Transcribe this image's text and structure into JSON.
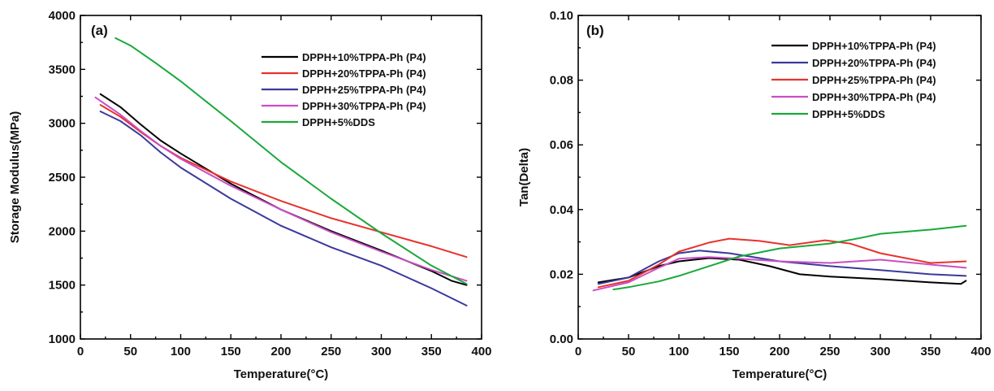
{
  "chart_data": [
    {
      "type": "line",
      "panel_label": "(a)",
      "xlabel": "Temperature",
      "xlabel_unit": "(°C)",
      "ylabel": "Storage Modulus(MPa)",
      "xlim": [
        0,
        400
      ],
      "ylim": [
        1000,
        4000
      ],
      "x_ticks": [
        0,
        50,
        100,
        150,
        200,
        250,
        300,
        350,
        400
      ],
      "y_ticks": [
        1000,
        1500,
        2000,
        2500,
        3000,
        3500,
        4000
      ],
      "grid": false,
      "legend_position": "top-right",
      "series": [
        {
          "name": "DPPH+10%TPPA-Ph (P4)",
          "color": "#000000",
          "x": [
            20,
            40,
            60,
            80,
            100,
            150,
            200,
            250,
            300,
            350,
            370,
            385
          ],
          "y": [
            3270,
            3150,
            2990,
            2840,
            2720,
            2440,
            2200,
            2000,
            1820,
            1630,
            1540,
            1500
          ]
        },
        {
          "name": "DPPH+20%TPPA-Ph (P4)",
          "color": "#e8322c",
          "x": [
            20,
            40,
            60,
            80,
            100,
            150,
            200,
            250,
            300,
            350,
            385
          ],
          "y": [
            3170,
            3060,
            2920,
            2790,
            2680,
            2460,
            2280,
            2120,
            1990,
            1860,
            1760
          ]
        },
        {
          "name": "DPPH+25%TPPA-Ph (P4)",
          "color": "#3a3a9c",
          "x": [
            20,
            40,
            60,
            80,
            100,
            150,
            200,
            250,
            300,
            350,
            385
          ],
          "y": [
            3110,
            3020,
            2890,
            2730,
            2590,
            2300,
            2050,
            1850,
            1680,
            1470,
            1310
          ]
        },
        {
          "name": "DPPH+30%TPPA-Ph (P4)",
          "color": "#c94fc4",
          "x": [
            15,
            40,
            60,
            80,
            100,
            150,
            200,
            250,
            300,
            350,
            385
          ],
          "y": [
            3240,
            3080,
            2930,
            2790,
            2670,
            2420,
            2200,
            1990,
            1810,
            1640,
            1540
          ]
        },
        {
          "name": "DPPH+5%DDS",
          "color": "#19a83a",
          "x": [
            35,
            50,
            75,
            100,
            150,
            200,
            250,
            300,
            350,
            385
          ],
          "y": [
            3790,
            3720,
            3560,
            3390,
            3020,
            2640,
            2300,
            1980,
            1680,
            1510
          ]
        }
      ]
    },
    {
      "type": "line",
      "panel_label": "(b)",
      "xlabel": "Temperature",
      "xlabel_unit": "(°C)",
      "ylabel": "Tan(Delta)",
      "xlim": [
        0,
        400
      ],
      "ylim": [
        0.0,
        0.1
      ],
      "x_ticks": [
        0,
        50,
        100,
        150,
        200,
        250,
        300,
        350,
        400
      ],
      "y_ticks": [
        "0.00",
        "0.02",
        "0.04",
        "0.06",
        "0.08",
        "0.10"
      ],
      "grid": false,
      "legend_position": "top-right",
      "series": [
        {
          "name": "DPPH+10%TPPA-Ph (P4)",
          "color": "#000000",
          "x": [
            20,
            50,
            80,
            100,
            130,
            160,
            190,
            220,
            250,
            300,
            350,
            380,
            385
          ],
          "y": [
            0.0175,
            0.019,
            0.0225,
            0.024,
            0.025,
            0.0245,
            0.0225,
            0.02,
            0.0193,
            0.0185,
            0.0175,
            0.017,
            0.018
          ]
        },
        {
          "name": "DPPH+20%TPPA-Ph (P4)",
          "color": "#3a3a9c",
          "x": [
            20,
            50,
            80,
            100,
            120,
            150,
            180,
            200,
            250,
            300,
            350,
            385
          ],
          "y": [
            0.017,
            0.019,
            0.024,
            0.0265,
            0.0273,
            0.0265,
            0.025,
            0.024,
            0.0225,
            0.0213,
            0.02,
            0.0195
          ]
        },
        {
          "name": "DPPH+25%TPPA-Ph (P4)",
          "color": "#e8322c",
          "x": [
            20,
            50,
            80,
            100,
            130,
            150,
            180,
            210,
            245,
            270,
            300,
            350,
            385
          ],
          "y": [
            0.016,
            0.018,
            0.023,
            0.027,
            0.0298,
            0.031,
            0.0303,
            0.029,
            0.0305,
            0.0295,
            0.0265,
            0.0235,
            0.024
          ]
        },
        {
          "name": "DPPH+30%TPPA-Ph (P4)",
          "color": "#c94fc4",
          "x": [
            15,
            50,
            80,
            100,
            130,
            150,
            200,
            250,
            300,
            350,
            385
          ],
          "y": [
            0.015,
            0.0175,
            0.022,
            0.0248,
            0.0253,
            0.025,
            0.024,
            0.0235,
            0.0245,
            0.023,
            0.022
          ]
        },
        {
          "name": "DPPH+5%DDS",
          "color": "#19a83a",
          "x": [
            35,
            50,
            80,
            100,
            130,
            160,
            200,
            250,
            280,
            300,
            350,
            385
          ],
          "y": [
            0.0153,
            0.016,
            0.0178,
            0.0195,
            0.0225,
            0.0255,
            0.028,
            0.0295,
            0.0312,
            0.0325,
            0.0338,
            0.035
          ]
        }
      ]
    }
  ]
}
